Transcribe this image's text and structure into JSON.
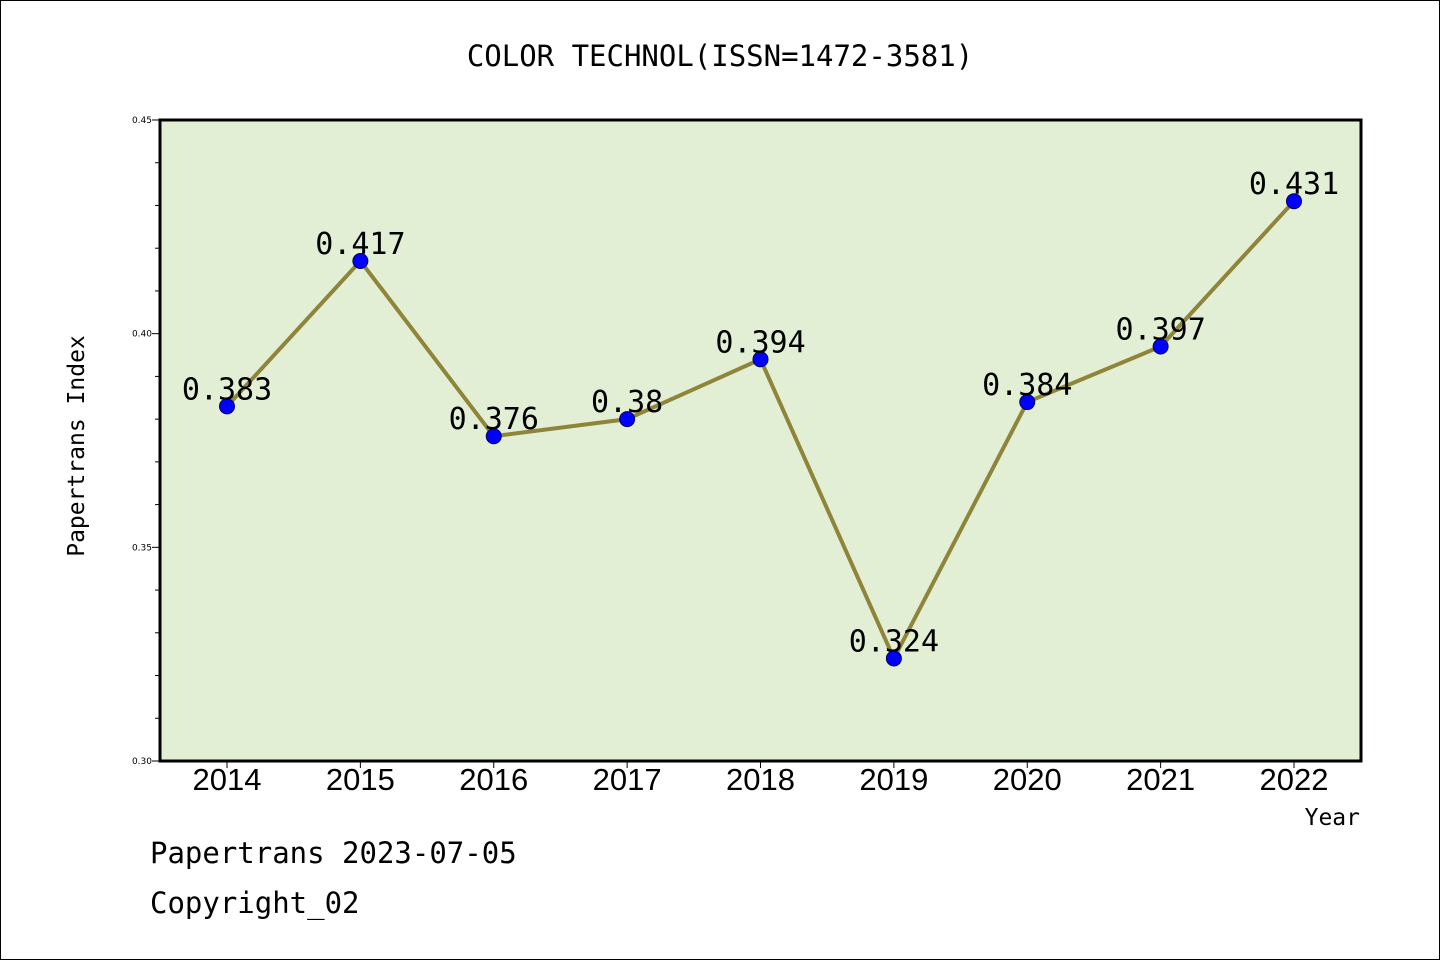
{
  "chart_data": {
    "type": "line",
    "title": "COLOR TECHNOL(ISSN=1472-3581)",
    "xlabel": "Year",
    "ylabel": "Papertrans Index",
    "categories": [
      "2014",
      "2015",
      "2016",
      "2017",
      "2018",
      "2019",
      "2020",
      "2021",
      "2022"
    ],
    "values": [
      0.383,
      0.417,
      0.376,
      0.38,
      0.394,
      0.324,
      0.384,
      0.397,
      0.431
    ],
    "data_labels": [
      "0.383",
      "0.417",
      "0.376",
      "0.38",
      "0.394",
      "0.324",
      "0.384",
      "0.397",
      "0.431"
    ],
    "ylim": [
      0.3,
      0.45
    ],
    "yticks": [
      0.3,
      0.35,
      0.4,
      0.45
    ],
    "ytick_labels": [
      "0.30",
      "0.35",
      "0.40",
      "0.45"
    ],
    "grid": false,
    "colors": {
      "plot_background": "#e2efd5",
      "line": "#8f853a",
      "marker": "#0000ff",
      "axis": "#000000"
    }
  },
  "footer": {
    "line1": "Papertrans 2023-07-05",
    "line2": "Copyright_02"
  }
}
